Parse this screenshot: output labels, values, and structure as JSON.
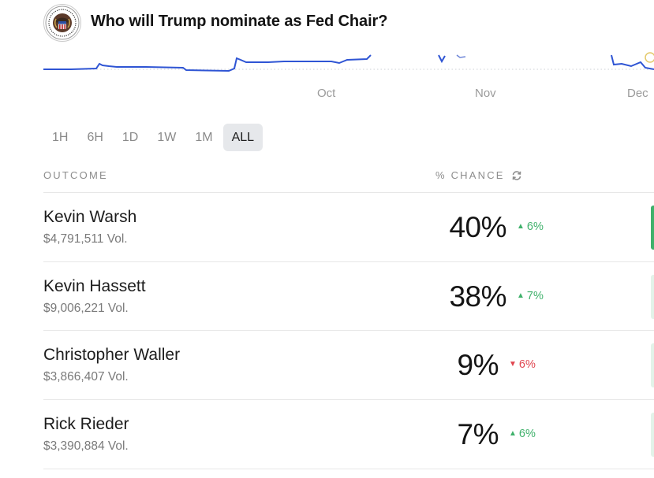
{
  "header": {
    "title": "Who will Trump nominate as Fed Chair?",
    "logo_icon": "federal-reserve-seal-icon"
  },
  "chart": {
    "x_ticks": [
      "Oct",
      "Nov",
      "Dec"
    ],
    "line_color": "#2f55d4"
  },
  "ranges": {
    "options": [
      "1H",
      "6H",
      "1D",
      "1W",
      "1M",
      "ALL"
    ],
    "selected": "ALL"
  },
  "table": {
    "col_outcome": "OUTCOME",
    "col_chance": "% CHANCE",
    "refresh_icon": "refresh-icon",
    "rows": [
      {
        "name": "Kevin Warsh",
        "volume": "$4,791,511 Vol.",
        "chance": "40%",
        "change": "6%",
        "direction": "up"
      },
      {
        "name": "Kevin Hassett",
        "volume": "$9,006,221 Vol.",
        "chance": "38%",
        "change": "7%",
        "direction": "up"
      },
      {
        "name": "Christopher Waller",
        "volume": "$3,866,407 Vol.",
        "chance": "9%",
        "change": "6%",
        "direction": "down"
      },
      {
        "name": "Rick Rieder",
        "volume": "$3,390,884 Vol.",
        "chance": "7%",
        "change": "6%",
        "direction": "up"
      }
    ]
  },
  "colors": {
    "up": "#3fb16b",
    "down": "#e0454f",
    "accent_edge": "#3fb16b"
  }
}
